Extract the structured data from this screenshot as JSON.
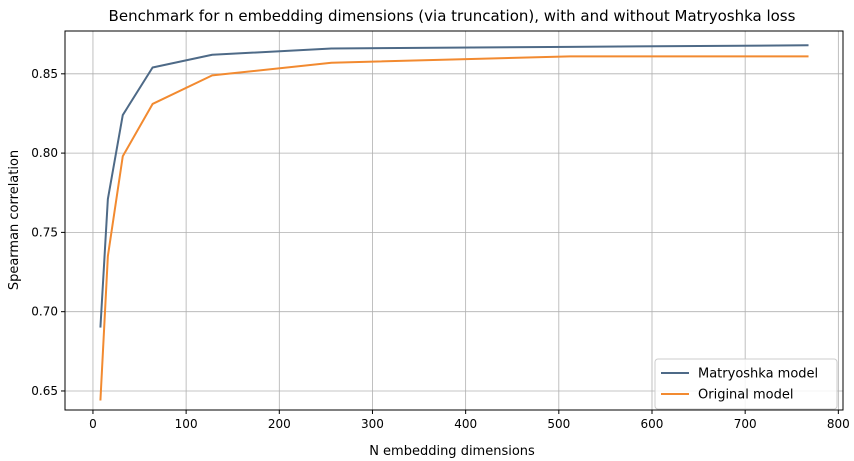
{
  "chart_data": {
    "type": "line",
    "title": "Benchmark for n embedding dimensions (via truncation), with and without Matryoshka loss",
    "xlabel": "N embedding dimensions",
    "ylabel": "Spearman correlation",
    "xlim": [
      -30,
      805
    ],
    "ylim": [
      0.638,
      0.877
    ],
    "xticks": [
      0,
      100,
      200,
      300,
      400,
      500,
      600,
      700,
      800
    ],
    "yticks": [
      0.65,
      0.7,
      0.75,
      0.8,
      0.85
    ],
    "ytick_labels": [
      "0.65",
      "0.70",
      "0.75",
      "0.80",
      "0.85"
    ],
    "grid": true,
    "legend_position": "bottom-right",
    "series": [
      {
        "name": "Matryoshka model",
        "color": "#4e6a87",
        "x": [
          8,
          16,
          32,
          64,
          128,
          256,
          512,
          768
        ],
        "y": [
          0.69,
          0.771,
          0.824,
          0.854,
          0.862,
          0.866,
          0.867,
          0.868
        ]
      },
      {
        "name": "Original model",
        "color": "#f28a30",
        "x": [
          8,
          16,
          32,
          64,
          128,
          256,
          512,
          768
        ],
        "y": [
          0.644,
          0.735,
          0.798,
          0.831,
          0.849,
          0.857,
          0.861,
          0.861
        ]
      }
    ]
  }
}
